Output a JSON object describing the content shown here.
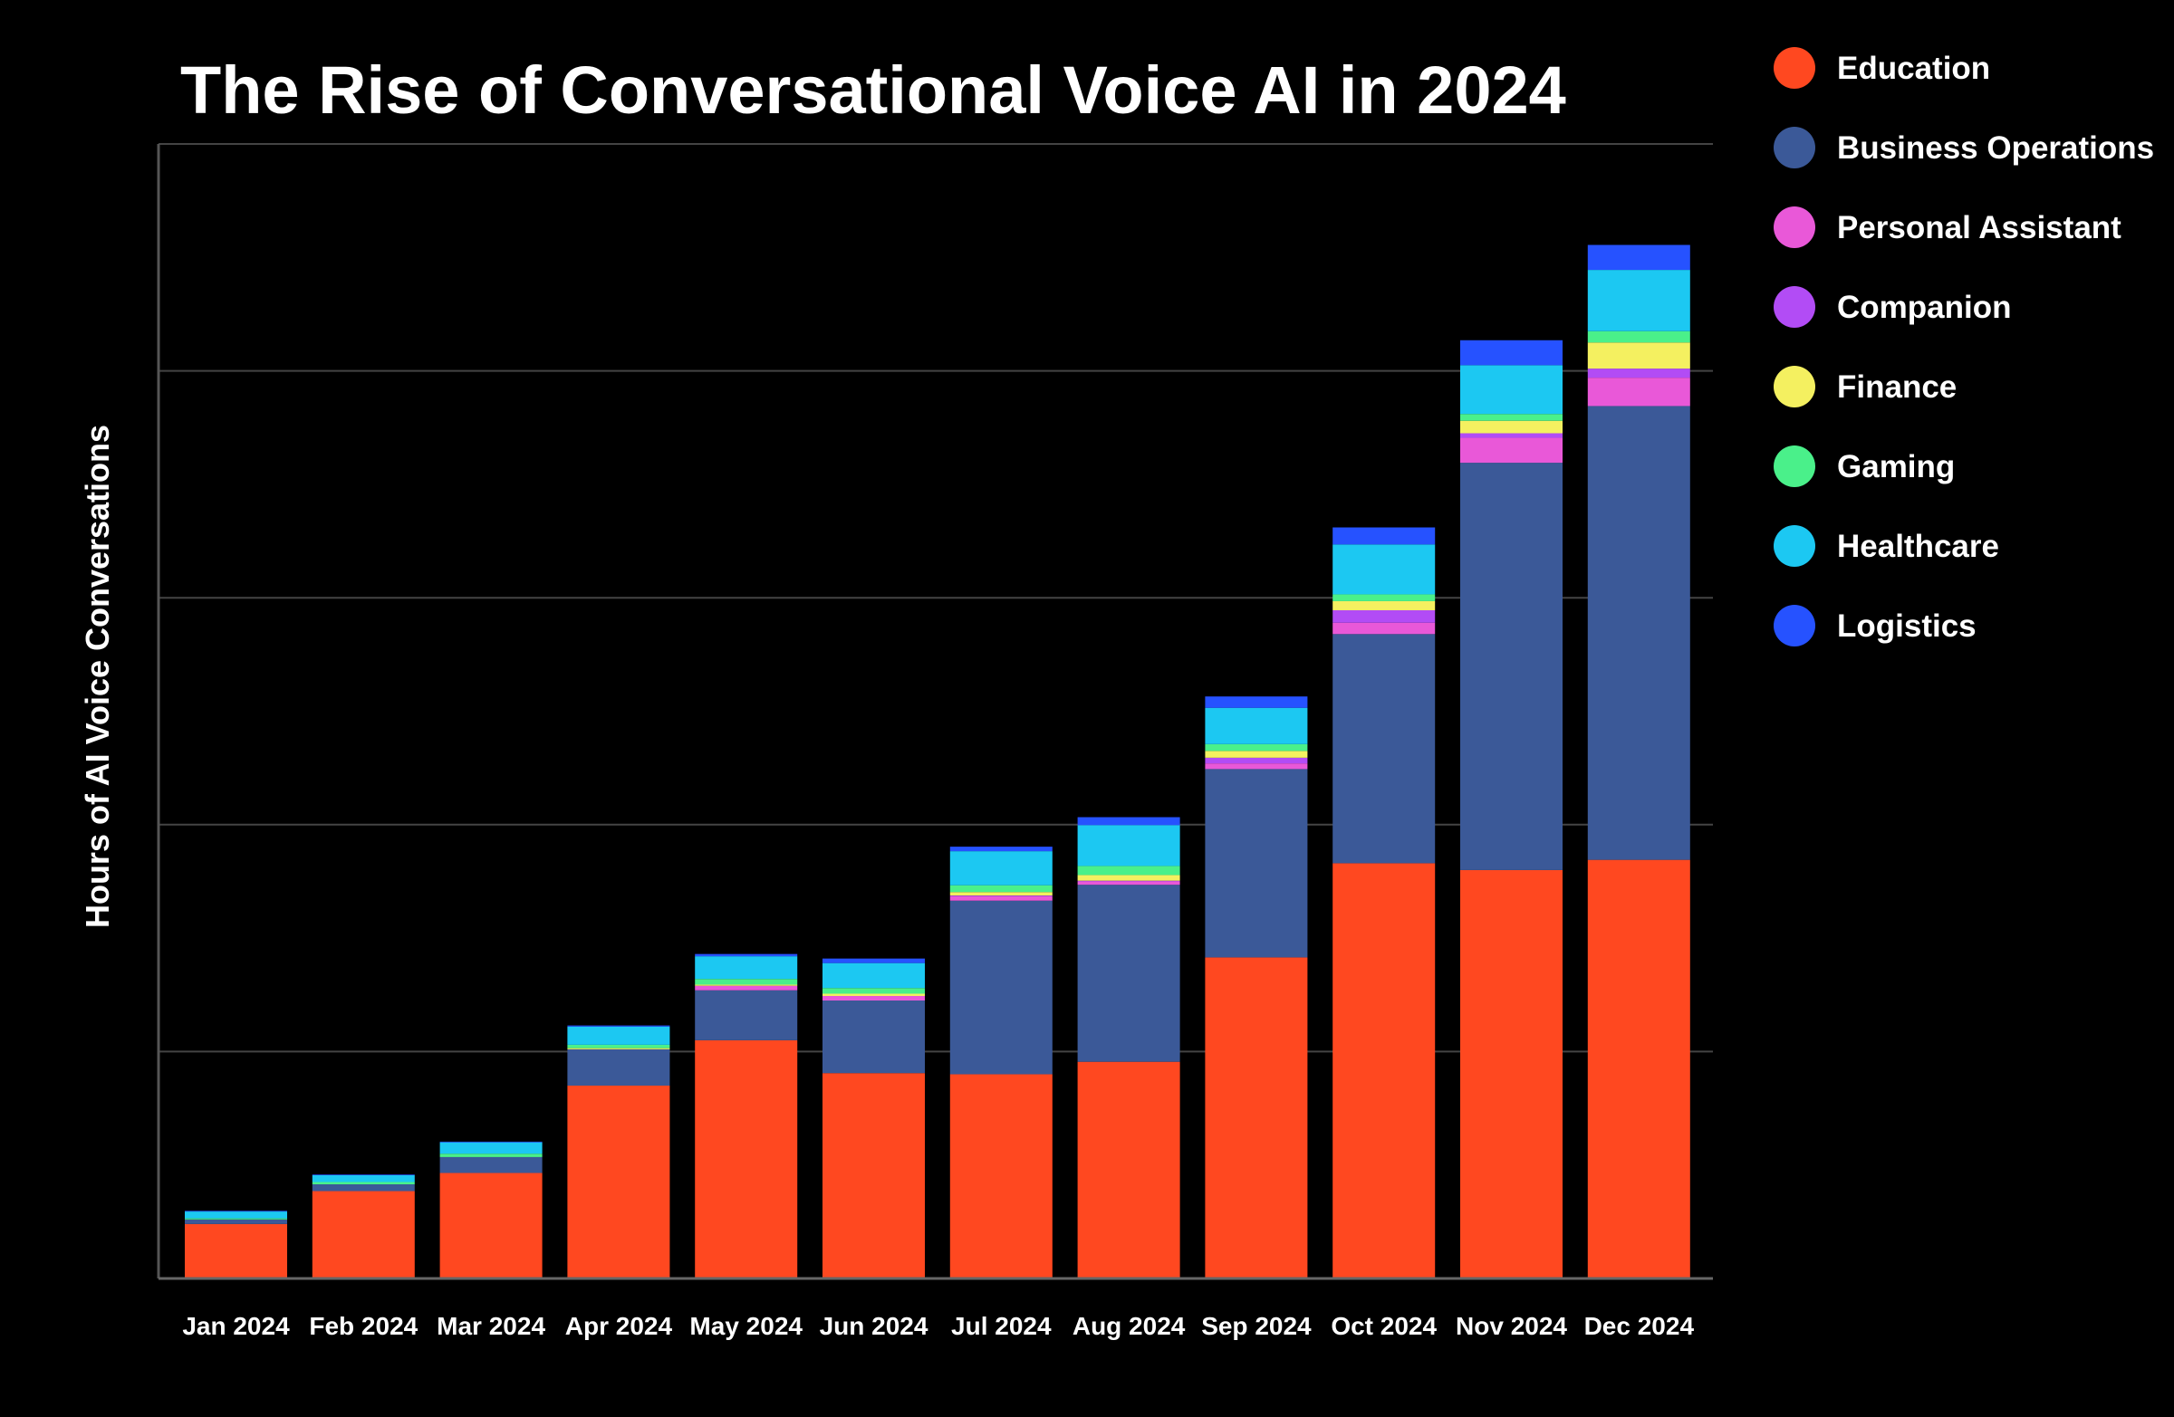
{
  "chart_data": {
    "type": "bar",
    "stacked": true,
    "title": "The Rise of Conversational Voice AI in 2024",
    "xlabel": "",
    "ylabel": "Hours of AI Voice Conversations",
    "ylim": [
      0,
      5
    ],
    "y_tick_labels_shown": false,
    "grid": true,
    "legend_position": "right",
    "categories": [
      "Jan 2024",
      "Feb 2024",
      "Mar 2024",
      "Apr 2024",
      "May 2024",
      "Jun 2024",
      "Jul 2024",
      "Aug 2024",
      "Sep 2024",
      "Oct 2024",
      "Nov 2024",
      "Dec 2024"
    ],
    "series": [
      {
        "name": "Education",
        "color": "#FF4820",
        "values": [
          0.24,
          0.385,
          0.465,
          0.85,
          1.05,
          0.905,
          0.9,
          0.955,
          1.415,
          1.83,
          1.8,
          1.845
        ]
      },
      {
        "name": "Business Operations",
        "color": "#3B5998",
        "values": [
          0.02,
          0.03,
          0.07,
          0.16,
          0.22,
          0.32,
          0.765,
          0.78,
          0.83,
          1.01,
          1.795,
          2.0
        ]
      },
      {
        "name": "Personal Assistant",
        "color": "#E958D8",
        "values": [
          0,
          0,
          0,
          0,
          0.02,
          0.02,
          0.02,
          0.015,
          0.025,
          0.05,
          0.11,
          0.125
        ]
      },
      {
        "name": "Companion",
        "color": "#B24CF5",
        "values": [
          0,
          0,
          0,
          0,
          0,
          0,
          0.003,
          0.003,
          0.025,
          0.055,
          0.02,
          0.04
        ]
      },
      {
        "name": "Finance",
        "color": "#F4F060",
        "values": [
          0,
          0,
          0,
          0.005,
          0.005,
          0.01,
          0.015,
          0.025,
          0.03,
          0.04,
          0.055,
          0.115
        ]
      },
      {
        "name": "Gaming",
        "color": "#4AF08A",
        "values": [
          0.005,
          0.01,
          0.015,
          0.015,
          0.025,
          0.025,
          0.03,
          0.04,
          0.03,
          0.03,
          0.03,
          0.05
        ]
      },
      {
        "name": "Healthcare",
        "color": "#1CC8F2",
        "values": [
          0.03,
          0.03,
          0.05,
          0.08,
          0.1,
          0.11,
          0.15,
          0.18,
          0.16,
          0.22,
          0.215,
          0.27
        ]
      },
      {
        "name": "Logistics",
        "color": "#2652FF",
        "values": [
          0.003,
          0.003,
          0.003,
          0.005,
          0.01,
          0.02,
          0.02,
          0.035,
          0.05,
          0.075,
          0.11,
          0.11
        ]
      }
    ]
  }
}
